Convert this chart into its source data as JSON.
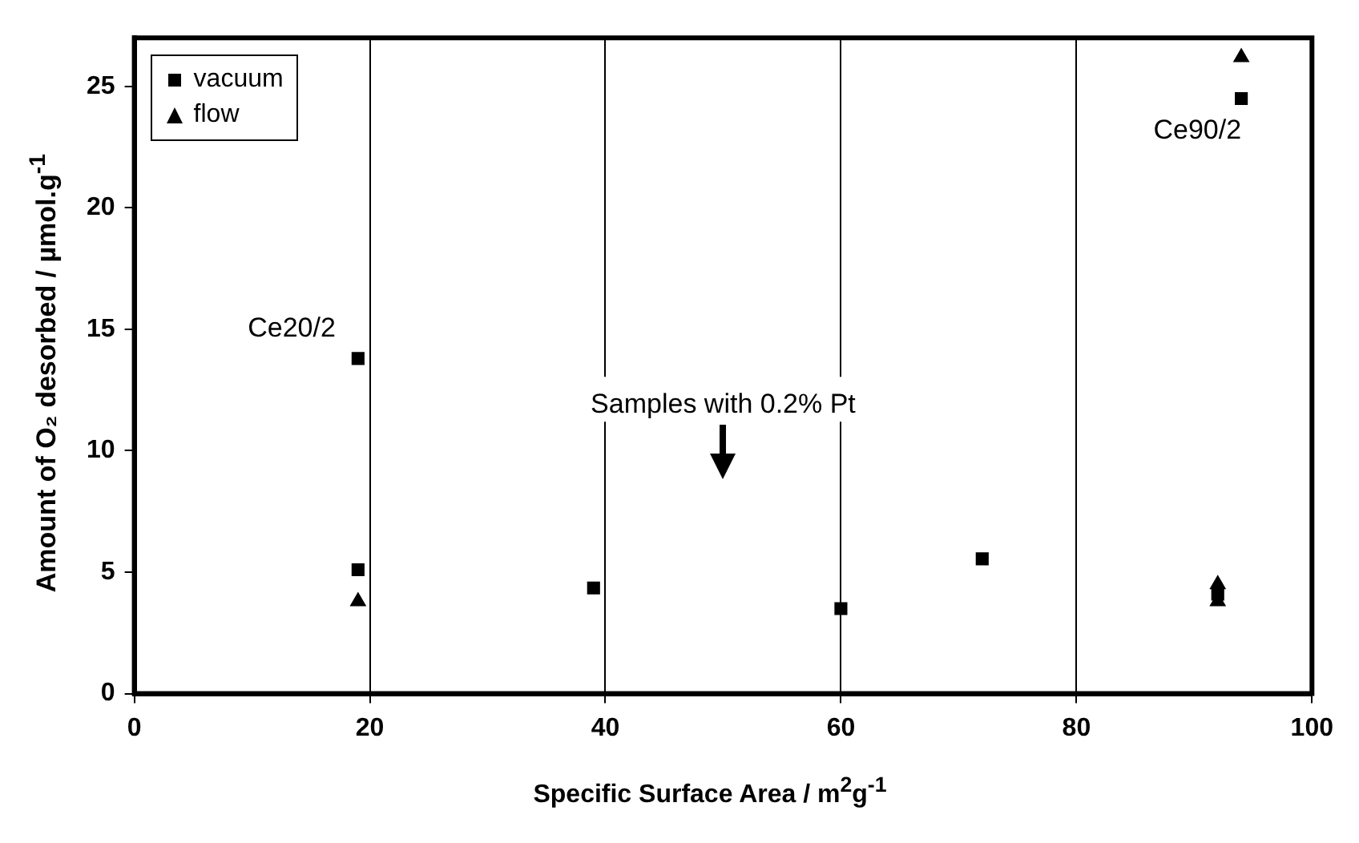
{
  "chart_data": {
    "type": "scatter",
    "xlabel": "Specific Surface Area / m$^{2}$g$^{-1}$",
    "ylabel": "Amount of O₂ desorbed / µmol.g$^{-1}$",
    "series": [
      {
        "name": "vacuum",
        "color": "#000000",
        "marker": "square",
        "x": [
          19,
          19,
          39,
          60,
          72,
          92,
          94
        ],
        "values": [
          13.8,
          5.1,
          4.35,
          3.5,
          5.55,
          4.1,
          24.5
        ]
      },
      {
        "name": "flow",
        "color": "#000000",
        "marker": "triangle",
        "x": [
          19,
          92,
          92,
          94
        ],
        "values": [
          3.8,
          4.5,
          3.8,
          26.2
        ]
      }
    ],
    "xlim": [
      0,
      100
    ],
    "xticks": [
      0,
      20,
      40,
      60,
      80,
      100
    ],
    "ylim": [
      0,
      27
    ],
    "yticks": [
      0,
      5,
      10,
      15,
      20,
      25
    ],
    "grid": "x",
    "legend": "top left",
    "annotations": [
      {
        "text": "Ce20/2",
        "x": 19,
        "y": 13.8
      },
      {
        "text": "Ce90/2",
        "x": 94,
        "y": 24.5
      },
      "Samples with 0.2% Pt"
    ]
  }
}
